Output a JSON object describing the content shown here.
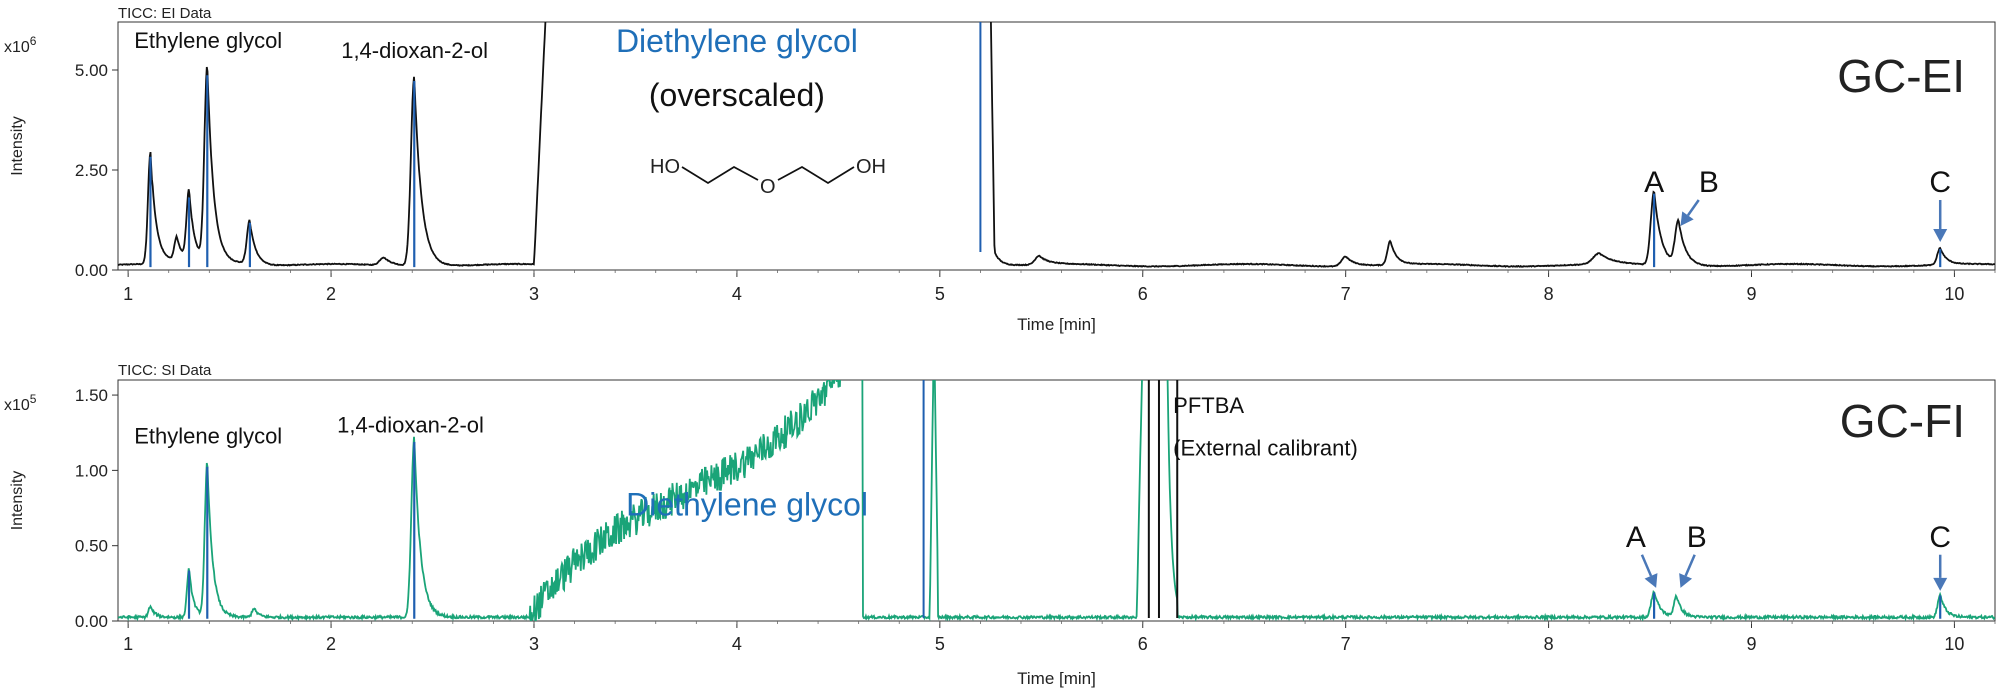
{
  "chart_data": [
    {
      "type": "line",
      "panel_title": "TICC: EI Data",
      "scale_exponent": "x10",
      "scale_power": "6",
      "ylabel": "Intensity",
      "xlabel": "Time [min]",
      "xlim": [
        0.95,
        10.2
      ],
      "ylim": [
        0,
        6.2
      ],
      "x_ticks": [
        1,
        2,
        3,
        4,
        5,
        6,
        7,
        8,
        9,
        10
      ],
      "x_tick_labels": [
        "1",
        "2",
        "3",
        "4",
        "5",
        "6",
        "7",
        "8",
        "9",
        "10"
      ],
      "y_ticks": [
        0,
        2.5,
        5.0
      ],
      "y_tick_labels": [
        "0.00",
        "2.50",
        "5.00"
      ],
      "mode_label": "GC-EI",
      "series_color": "#111111",
      "marker_color": "#1f5fb0",
      "baseline": 0.12,
      "peaks": [
        {
          "x": 1.11,
          "y": 2.8,
          "w": 0.012
        },
        {
          "x": 1.24,
          "y": 0.6,
          "w": 0.012
        },
        {
          "x": 1.3,
          "y": 1.75,
          "w": 0.012
        },
        {
          "x": 1.39,
          "y": 4.9,
          "w": 0.014
        },
        {
          "x": 1.6,
          "y": 1.1,
          "w": 0.014
        },
        {
          "x": 2.26,
          "y": 0.2,
          "w": 0.02
        },
        {
          "x": 2.41,
          "y": 4.75,
          "w": 0.016
        },
        {
          "x": 5.49,
          "y": 0.22,
          "w": 0.02
        },
        {
          "x": 7.0,
          "y": 0.25,
          "w": 0.02
        },
        {
          "x": 7.22,
          "y": 0.6,
          "w": 0.014
        },
        {
          "x": 8.25,
          "y": 0.27,
          "w": 0.03
        },
        {
          "x": 8.52,
          "y": 1.85,
          "w": 0.016
        },
        {
          "x": 8.64,
          "y": 1.1,
          "w": 0.016
        },
        {
          "x": 9.93,
          "y": 0.42,
          "w": 0.014
        }
      ],
      "marker_lines": [
        1.11,
        1.3,
        1.39,
        1.6,
        2.41,
        8.52,
        9.93
      ],
      "overscale": {
        "rise_start": 3.0,
        "rise_end": 3.06,
        "drop_start": 5.25,
        "drop_end": 5.27,
        "level": 6.5
      },
      "marker_line_tall": [
        {
          "x": 5.2,
          "from": 0.45,
          "to": 7.0
        }
      ],
      "annotations": [
        {
          "text": "Ethylene glycol",
          "x": 1.03,
          "y": 5.55,
          "size": 22,
          "color": "#111111",
          "anchor": "start"
        },
        {
          "text": "1,4-dioxan-2-ol",
          "x": 2.05,
          "y": 5.3,
          "size": 22,
          "color": "#111111",
          "anchor": "start"
        },
        {
          "text": "Diethylene glycol",
          "x": 4.0,
          "y": 5.45,
          "size": 32,
          "color": "#1f6fb8",
          "anchor": "middle"
        },
        {
          "text": "(overscaled)",
          "x": 4.0,
          "y": 4.1,
          "size": 32,
          "color": "#111111",
          "anchor": "middle"
        },
        {
          "text": "A",
          "x": 8.52,
          "y": 1.95,
          "size": 30,
          "color": "#111111",
          "anchor": "middle"
        },
        {
          "text": "B",
          "x": 8.79,
          "y": 1.95,
          "size": 30,
          "color": "#111111",
          "anchor": "middle"
        },
        {
          "text": "C",
          "x": 9.93,
          "y": 1.95,
          "size": 30,
          "color": "#111111",
          "anchor": "middle"
        }
      ],
      "arrows": [
        {
          "from": [
            8.74,
            1.75
          ],
          "to": [
            8.65,
            1.1
          ]
        },
        {
          "from": [
            9.93,
            1.75
          ],
          "to": [
            9.93,
            0.7
          ]
        }
      ],
      "structure": {
        "labels": [
          "HO",
          "O",
          "OH"
        ]
      }
    },
    {
      "type": "line",
      "panel_title": "TICC: SI Data",
      "scale_exponent": "x10",
      "scale_power": "5",
      "ylabel": "Intensity",
      "xlabel": "Time [min]",
      "xlim": [
        0.95,
        10.2
      ],
      "ylim": [
        0,
        1.6
      ],
      "x_ticks": [
        1,
        2,
        3,
        4,
        5,
        6,
        7,
        8,
        9,
        10
      ],
      "x_tick_labels": [
        "1",
        "2",
        "3",
        "4",
        "5",
        "6",
        "7",
        "8",
        "9",
        "10"
      ],
      "y_ticks": [
        0,
        0.5,
        1.0,
        1.5
      ],
      "y_tick_labels": [
        "0.00",
        "0.50",
        "1.00",
        "1.50"
      ],
      "mode_label": "GC-FI",
      "series_color": "#1aa478",
      "marker_color": "#1f5fb0",
      "baseline": 0.025,
      "peaks": [
        {
          "x": 1.11,
          "y": 0.07,
          "w": 0.01
        },
        {
          "x": 1.3,
          "y": 0.32,
          "w": 0.01
        },
        {
          "x": 1.39,
          "y": 1.03,
          "w": 0.012
        },
        {
          "x": 1.62,
          "y": 0.06,
          "w": 0.01
        },
        {
          "x": 2.41,
          "y": 1.2,
          "w": 0.014
        },
        {
          "x": 8.52,
          "y": 0.17,
          "w": 0.014
        },
        {
          "x": 8.63,
          "y": 0.14,
          "w": 0.012
        },
        {
          "x": 9.93,
          "y": 0.15,
          "w": 0.012
        }
      ],
      "marker_lines": [
        1.3,
        1.39,
        2.41,
        8.52,
        9.93
      ],
      "noisy_hump": {
        "start": 2.98,
        "end": 4.62,
        "peak_end_level": 1.75
      },
      "overscale": {
        "rise_start": 4.95,
        "rise_end": 4.97,
        "drop_start": 4.97,
        "drop_end": 4.99,
        "level": 1.8
      },
      "calibrant": {
        "rise_start": 5.97,
        "rise_end": 6.0,
        "drop_start": 6.12,
        "drop_end": 6.17,
        "level": 1.8
      },
      "black_lines": [
        6.03,
        6.08,
        6.17
      ],
      "marker_line_tall": [
        {
          "x": 4.92,
          "from": 0.02,
          "to": 1.8
        }
      ],
      "annotations": [
        {
          "text": "Ethylene glycol",
          "x": 1.03,
          "y": 1.18,
          "size": 22,
          "color": "#111111",
          "anchor": "start"
        },
        {
          "text": "1,4-dioxan-2-ol",
          "x": 2.03,
          "y": 1.25,
          "size": 22,
          "color": "#111111",
          "anchor": "start"
        },
        {
          "text": "Diethylene glycol",
          "x": 4.05,
          "y": 0.7,
          "size": 32,
          "color": "#1f6fb8",
          "anchor": "middle"
        },
        {
          "text": "PFTBA",
          "x": 6.15,
          "y": 1.38,
          "size": 22,
          "color": "#111111",
          "anchor": "start"
        },
        {
          "text": "(External calibrant)",
          "x": 6.15,
          "y": 1.1,
          "size": 22,
          "color": "#111111",
          "anchor": "start"
        },
        {
          "text": "A",
          "x": 8.43,
          "y": 0.49,
          "size": 30,
          "color": "#111111",
          "anchor": "middle"
        },
        {
          "text": "B",
          "x": 8.73,
          "y": 0.49,
          "size": 30,
          "color": "#111111",
          "anchor": "middle"
        },
        {
          "text": "C",
          "x": 9.93,
          "y": 0.49,
          "size": 30,
          "color": "#111111",
          "anchor": "middle"
        }
      ],
      "arrows": [
        {
          "from": [
            8.46,
            0.44
          ],
          "to": [
            8.53,
            0.22
          ]
        },
        {
          "from": [
            8.72,
            0.44
          ],
          "to": [
            8.65,
            0.22
          ]
        },
        {
          "from": [
            9.93,
            0.44
          ],
          "to": [
            9.93,
            0.2
          ]
        }
      ]
    }
  ]
}
